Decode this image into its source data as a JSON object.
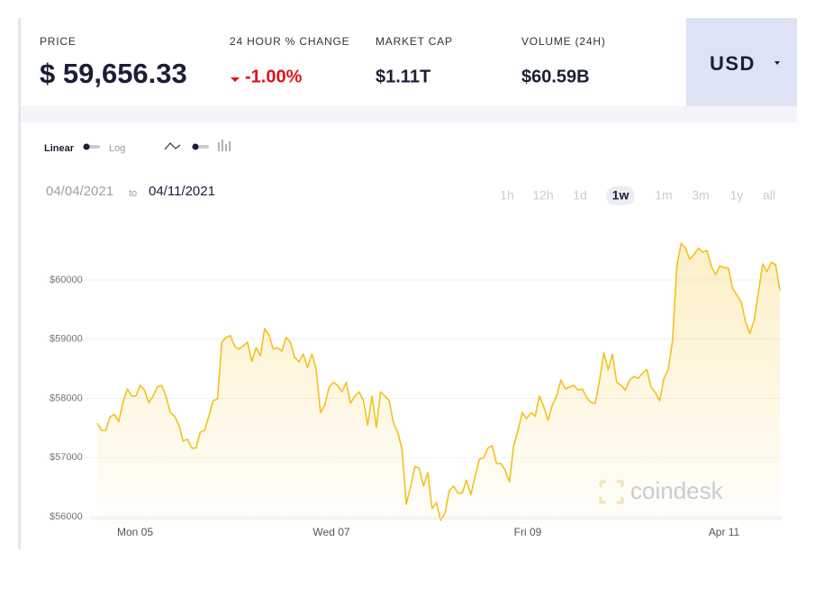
{
  "header": {
    "stats": [
      {
        "label": "PRICE",
        "value": "$ 59,656.33"
      },
      {
        "label": "24 HOUR % CHANGE",
        "value": "-1.00%"
      },
      {
        "label": "MARKET CAP",
        "value": "$1.11T"
      },
      {
        "label": "VOLUME (24H)",
        "value": "$60.59B"
      }
    ],
    "currency": "USD"
  },
  "controls": {
    "scale": [
      "Linear",
      "Log"
    ],
    "from": "04/04/2021",
    "to_word": "to",
    "to": "04/11/2021",
    "ranges": [
      "1h",
      "12h",
      "1d",
      "1w",
      "1m",
      "3m",
      "1y",
      "all"
    ],
    "selected_range": "1w"
  },
  "watermark": "coindesk",
  "chart_data": {
    "type": "line",
    "color": "#f4c01e",
    "values": [
      57580,
      57460,
      57460,
      57690,
      57730,
      57610,
      57930,
      58160,
      58040,
      58040,
      58220,
      58140,
      57930,
      58040,
      58190,
      58220,
      58040,
      57760,
      57700,
      57550,
      57280,
      57310,
      57160,
      57160,
      57430,
      57460,
      57700,
      57960,
      57990,
      58950,
      59030,
      59060,
      58880,
      58830,
      58890,
      58950,
      58620,
      58860,
      58720,
      59180,
      59070,
      58830,
      58860,
      58800,
      59030,
      58950,
      58690,
      58620,
      58750,
      58520,
      58750,
      58490,
      57760,
      57890,
      58190,
      58270,
      58220,
      58110,
      58270,
      57920,
      58040,
      58110,
      57960,
      57550,
      58040,
      57510,
      58110,
      58040,
      57960,
      57580,
      57430,
      57130,
      56210,
      56520,
      56850,
      56820,
      56520,
      56750,
      56140,
      56240,
      55940,
      56060,
      56440,
      56520,
      56400,
      56400,
      56620,
      56370,
      56680,
      56970,
      57000,
      57160,
      57200,
      56900,
      56900,
      56790,
      56590,
      57200,
      57460,
      57760,
      57660,
      57760,
      57700,
      58040,
      57860,
      57630,
      57890,
      58040,
      58310,
      58160,
      58190,
      58220,
      58140,
      58160,
      58010,
      57930,
      57920,
      58310,
      58770,
      58490,
      58750,
      58270,
      58220,
      58140,
      58310,
      58370,
      58340,
      58420,
      58490,
      58190,
      58100,
      57960,
      58340,
      58490,
      58980,
      60240,
      60620,
      60540,
      60350,
      60430,
      60540,
      60470,
      60500,
      60240,
      60090,
      60240,
      60210,
      60200,
      59860,
      59740,
      59630,
      59290,
      59100,
      59320,
      59790,
      60270,
      60140,
      60300,
      60260,
      59830
    ],
    "x_axis_labels": [
      "Mon 05",
      "Wed 07",
      "Fri 09",
      "Apr 11"
    ],
    "ylim": [
      55900,
      60900
    ],
    "yticks": [
      {
        "value": 56000,
        "label": "$56000"
      },
      {
        "value": 57000,
        "label": "$57000"
      },
      {
        "value": 58000,
        "label": "$58000"
      },
      {
        "value": 59000,
        "label": "$59000"
      },
      {
        "value": 60000,
        "label": "$60000"
      }
    ],
    "grid": true
  }
}
